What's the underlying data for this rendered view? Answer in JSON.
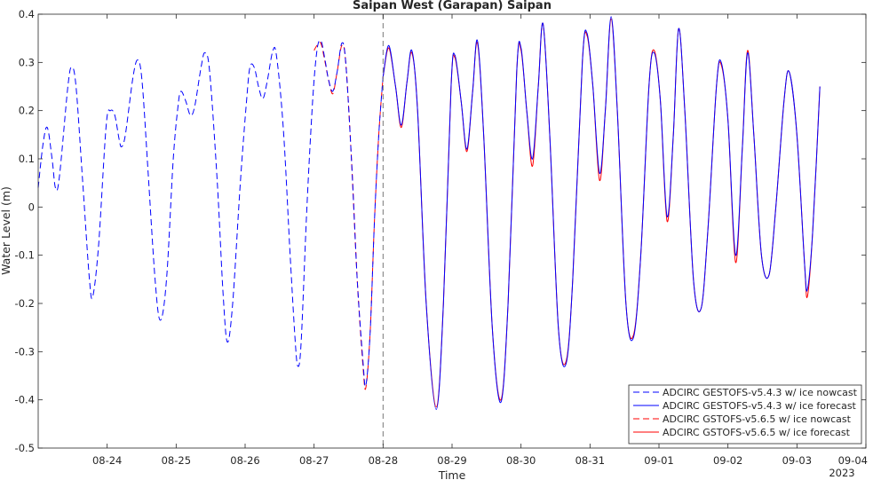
{
  "chart_data": {
    "type": "line",
    "title": "Saipan West (Garapan) Saipan",
    "xlabel": "Time",
    "ylabel": "Water Level (m)",
    "year_label": "2023",
    "ylim": [
      -0.5,
      0.4
    ],
    "yticks": [
      -0.5,
      -0.4,
      -0.3,
      -0.2,
      -0.1,
      0,
      0.1,
      0.2,
      0.3,
      0.4
    ],
    "ytick_labels": [
      "-0.5",
      "-0.4",
      "-0.3",
      "-0.2",
      "-0.1",
      "0",
      "0.1",
      "0.2",
      "0.3",
      "0.4"
    ],
    "xlim": [
      "2023-08-23 00:00",
      "2023-09-04 00:00"
    ],
    "xticks": [
      "2023-08-24",
      "2023-08-25",
      "2023-08-26",
      "2023-08-27",
      "2023-08-28",
      "2023-08-29",
      "2023-08-30",
      "2023-08-31",
      "2023-09-01",
      "2023-09-02",
      "2023-09-03",
      "2023-09-04"
    ],
    "xtick_labels": [
      "08-24",
      "08-25",
      "08-26",
      "08-27",
      "08-28",
      "08-29",
      "08-30",
      "08-31",
      "09-01",
      "09-02",
      "09-03",
      "09-04"
    ],
    "nowcast_forecast_divider": "2023-08-28 00:00",
    "grid": false,
    "legend_position": "bottom-right",
    "series": [
      {
        "name": "ADCIRC GESTOFS-v5.4.3 w/ ice nowcast",
        "color": "#0000ff",
        "style": "dashed",
        "points": [
          [
            "2023-08-23 00:00",
            0.04
          ],
          [
            "2023-08-23 01:40",
            0.13
          ],
          [
            "2023-08-23 03:10",
            0.165
          ],
          [
            "2023-08-23 04:50",
            0.1
          ],
          [
            "2023-08-23 06:00",
            0.04
          ],
          [
            "2023-08-23 07:20",
            0.06
          ],
          [
            "2023-08-23 10:20",
            0.25
          ],
          [
            "2023-08-23 11:40",
            0.29
          ],
          [
            "2023-08-23 13:10",
            0.25
          ],
          [
            "2023-08-23 15:30",
            0.05
          ],
          [
            "2023-08-23 17:50",
            -0.15
          ],
          [
            "2023-08-23 19:00",
            -0.185
          ],
          [
            "2023-08-23 21:00",
            -0.08
          ],
          [
            "2023-08-23 23:40",
            0.17
          ],
          [
            "2023-08-24 01:10",
            0.2
          ],
          [
            "2023-08-24 02:40",
            0.19
          ],
          [
            "2023-08-24 04:10",
            0.14
          ],
          [
            "2023-08-24 05:00",
            0.125
          ],
          [
            "2023-08-24 06:20",
            0.15
          ],
          [
            "2023-08-24 09:00",
            0.27
          ],
          [
            "2023-08-24 10:40",
            0.305
          ],
          [
            "2023-08-24 12:10",
            0.26
          ],
          [
            "2023-08-24 14:10",
            0.08
          ],
          [
            "2023-08-24 16:40",
            -0.15
          ],
          [
            "2023-08-24 18:30",
            -0.235
          ],
          [
            "2023-08-24 20:40",
            -0.15
          ],
          [
            "2023-08-24 23:00",
            0.1
          ],
          [
            "2023-08-25 00:40",
            0.21
          ],
          [
            "2023-08-25 01:40",
            0.24
          ],
          [
            "2023-08-25 03:20",
            0.22
          ],
          [
            "2023-08-25 05:00",
            0.19
          ],
          [
            "2023-08-25 06:30",
            0.21
          ],
          [
            "2023-08-25 08:40",
            0.29
          ],
          [
            "2023-08-25 10:00",
            0.32
          ],
          [
            "2023-08-25 11:40",
            0.28
          ],
          [
            "2023-08-25 14:20",
            0.05
          ],
          [
            "2023-08-25 16:20",
            -0.18
          ],
          [
            "2023-08-25 17:50",
            -0.28
          ],
          [
            "2023-08-25 19:40",
            -0.2
          ],
          [
            "2023-08-25 22:20",
            0.05
          ],
          [
            "2023-08-26 00:30",
            0.22
          ],
          [
            "2023-08-26 01:40",
            0.29
          ],
          [
            "2023-08-26 03:10",
            0.29
          ],
          [
            "2023-08-26 04:40",
            0.25
          ],
          [
            "2023-08-26 06:10",
            0.225
          ],
          [
            "2023-08-26 07:40",
            0.26
          ],
          [
            "2023-08-26 09:40",
            0.325
          ],
          [
            "2023-08-26 11:00",
            0.31
          ],
          [
            "2023-08-26 13:20",
            0.16
          ],
          [
            "2023-08-26 15:40",
            -0.1
          ],
          [
            "2023-08-26 17:20",
            -0.27
          ],
          [
            "2023-08-26 18:20",
            -0.33
          ],
          [
            "2023-08-26 19:30",
            -0.28
          ],
          [
            "2023-08-26 21:30",
            0.0
          ],
          [
            "2023-08-26 23:30",
            0.22
          ],
          [
            "2023-08-27 01:00",
            0.325
          ],
          [
            "2023-08-27 02:20",
            0.345
          ],
          [
            "2023-08-27 03:40",
            0.31
          ],
          [
            "2023-08-27 05:00",
            0.265
          ],
          [
            "2023-08-27 06:30",
            0.24
          ],
          [
            "2023-08-27 08:00",
            0.28
          ],
          [
            "2023-08-27 09:40",
            0.34
          ],
          [
            "2023-08-27 11:00",
            0.3
          ],
          [
            "2023-08-27 13:00",
            0.1
          ],
          [
            "2023-08-27 15:00",
            -0.15
          ],
          [
            "2023-08-27 17:00",
            -0.32
          ],
          [
            "2023-08-27 18:00",
            -0.37
          ],
          [
            "2023-08-27 19:30",
            -0.26
          ],
          [
            "2023-08-27 21:00",
            -0.03
          ],
          [
            "2023-08-27 22:30",
            0.15
          ],
          [
            "2023-08-27 24:00",
            0.27
          ]
        ]
      },
      {
        "name": "ADCIRC GESTOFS-v5.4.3 w/ ice forecast",
        "color": "#0000ff",
        "style": "solid",
        "points": [
          [
            "2023-08-28 00:00",
            0.27
          ],
          [
            "2023-08-28 02:00",
            0.335
          ],
          [
            "2023-08-28 04:20",
            0.25
          ],
          [
            "2023-08-28 06:20",
            0.17
          ],
          [
            "2023-08-28 08:20",
            0.26
          ],
          [
            "2023-08-28 10:00",
            0.325
          ],
          [
            "2023-08-28 12:00",
            0.2
          ],
          [
            "2023-08-28 15:00",
            -0.2
          ],
          [
            "2023-08-28 18:30",
            -0.42
          ],
          [
            "2023-08-28 21:00",
            -0.2
          ],
          [
            "2023-08-28 23:40",
            0.25
          ],
          [
            "2023-08-29 01:00",
            0.315
          ],
          [
            "2023-08-29 03:10",
            0.22
          ],
          [
            "2023-08-29 05:10",
            0.12
          ],
          [
            "2023-08-29 07:10",
            0.24
          ],
          [
            "2023-08-29 08:50",
            0.345
          ],
          [
            "2023-08-29 11:00",
            0.15
          ],
          [
            "2023-08-29 14:00",
            -0.25
          ],
          [
            "2023-08-29 17:00",
            -0.405
          ],
          [
            "2023-08-29 19:30",
            -0.2
          ],
          [
            "2023-08-29 22:30",
            0.28
          ],
          [
            "2023-08-30 00:00",
            0.33
          ],
          [
            "2023-08-30 02:00",
            0.2
          ],
          [
            "2023-08-30 04:00",
            0.1
          ],
          [
            "2023-08-30 06:00",
            0.25
          ],
          [
            "2023-08-30 07:40",
            0.38
          ],
          [
            "2023-08-30 10:00",
            0.15
          ],
          [
            "2023-08-30 13:00",
            -0.25
          ],
          [
            "2023-08-30 15:40",
            -0.325
          ],
          [
            "2023-08-30 18:00",
            -0.15
          ],
          [
            "2023-08-30 21:20",
            0.3
          ],
          [
            "2023-08-30 23:00",
            0.36
          ],
          [
            "2023-08-31 01:00",
            0.25
          ],
          [
            "2023-08-31 03:20",
            0.07
          ],
          [
            "2023-08-31 05:20",
            0.2
          ],
          [
            "2023-08-31 07:20",
            0.395
          ],
          [
            "2023-08-31 09:30",
            0.2
          ],
          [
            "2023-08-31 12:30",
            -0.2
          ],
          [
            "2023-08-31 15:10",
            -0.27
          ],
          [
            "2023-08-31 17:40",
            -0.1
          ],
          [
            "2023-08-31 20:30",
            0.25
          ],
          [
            "2023-08-31 22:20",
            0.32
          ],
          [
            "2023-09-01 00:30",
            0.22
          ],
          [
            "2023-09-01 02:50",
            -0.02
          ],
          [
            "2023-09-01 05:00",
            0.15
          ],
          [
            "2023-09-01 06:50",
            0.37
          ],
          [
            "2023-09-01 09:00",
            0.2
          ],
          [
            "2023-09-01 12:00",
            -0.15
          ],
          [
            "2023-09-01 14:40",
            -0.21
          ],
          [
            "2023-09-01 17:00",
            -0.05
          ],
          [
            "2023-09-01 20:00",
            0.25
          ],
          [
            "2023-09-01 21:40",
            0.3
          ],
          [
            "2023-09-02 00:00",
            0.18
          ],
          [
            "2023-09-02 02:40",
            -0.1
          ],
          [
            "2023-09-02 05:00",
            0.12
          ],
          [
            "2023-09-02 06:50",
            0.32
          ],
          [
            "2023-09-02 09:00",
            0.15
          ],
          [
            "2023-09-02 11:40",
            -0.1
          ],
          [
            "2023-09-02 14:20",
            -0.14
          ],
          [
            "2023-09-02 16:40",
            0.0
          ],
          [
            "2023-09-02 19:30",
            0.22
          ],
          [
            "2023-09-02 21:20",
            0.28
          ],
          [
            "2023-09-03 00:00",
            0.15
          ],
          [
            "2023-09-03 02:40",
            -0.12
          ],
          [
            "2023-09-03 03:40",
            -0.17
          ],
          [
            "2023-09-03 05:30",
            -0.05
          ],
          [
            "2023-09-03 08:00",
            0.25
          ]
        ]
      },
      {
        "name": "ADCIRC GSTOFS-v5.6.5 w/ ice nowcast",
        "color": "#ff0000",
        "style": "dashed",
        "points": [
          [
            "2023-08-27 00:00",
            0.325
          ],
          [
            "2023-08-27 01:00",
            0.335
          ],
          [
            "2023-08-27 02:20",
            0.34
          ],
          [
            "2023-08-27 03:40",
            0.305
          ],
          [
            "2023-08-27 05:00",
            0.265
          ],
          [
            "2023-08-27 06:30",
            0.235
          ],
          [
            "2023-08-27 08:00",
            0.28
          ],
          [
            "2023-08-27 09:40",
            0.335
          ],
          [
            "2023-08-27 11:00",
            0.3
          ],
          [
            "2023-08-27 13:00",
            0.1
          ],
          [
            "2023-08-27 15:00",
            -0.15
          ],
          [
            "2023-08-27 17:00",
            -0.33
          ],
          [
            "2023-08-27 18:00",
            -0.375
          ],
          [
            "2023-08-27 19:30",
            -0.26
          ],
          [
            "2023-08-27 21:00",
            -0.03
          ],
          [
            "2023-08-27 22:30",
            0.15
          ],
          [
            "2023-08-27 24:00",
            0.27
          ]
        ]
      },
      {
        "name": "ADCIRC GSTOFS-v5.6.5 w/ ice forecast",
        "color": "#ff0000",
        "style": "solid",
        "points": [
          [
            "2023-08-28 00:00",
            0.27
          ],
          [
            "2023-08-28 02:00",
            0.33
          ],
          [
            "2023-08-28 04:20",
            0.25
          ],
          [
            "2023-08-28 06:20",
            0.165
          ],
          [
            "2023-08-28 08:20",
            0.26
          ],
          [
            "2023-08-28 10:00",
            0.32
          ],
          [
            "2023-08-28 12:00",
            0.2
          ],
          [
            "2023-08-28 15:00",
            -0.2
          ],
          [
            "2023-08-28 18:30",
            -0.415
          ],
          [
            "2023-08-28 21:00",
            -0.2
          ],
          [
            "2023-08-28 23:40",
            0.25
          ],
          [
            "2023-08-29 01:00",
            0.31
          ],
          [
            "2023-08-29 03:10",
            0.22
          ],
          [
            "2023-08-29 05:10",
            0.115
          ],
          [
            "2023-08-29 07:10",
            0.24
          ],
          [
            "2023-08-29 08:50",
            0.34
          ],
          [
            "2023-08-29 11:00",
            0.15
          ],
          [
            "2023-08-29 14:00",
            -0.25
          ],
          [
            "2023-08-29 17:00",
            -0.4
          ],
          [
            "2023-08-29 19:30",
            -0.2
          ],
          [
            "2023-08-29 22:30",
            0.28
          ],
          [
            "2023-08-30 00:00",
            0.325
          ],
          [
            "2023-08-30 02:00",
            0.2
          ],
          [
            "2023-08-30 04:00",
            0.085
          ],
          [
            "2023-08-30 06:00",
            0.25
          ],
          [
            "2023-08-30 07:40",
            0.38
          ],
          [
            "2023-08-30 10:00",
            0.15
          ],
          [
            "2023-08-30 13:00",
            -0.25
          ],
          [
            "2023-08-30 15:40",
            -0.32
          ],
          [
            "2023-08-30 18:00",
            -0.15
          ],
          [
            "2023-08-30 21:20",
            0.3
          ],
          [
            "2023-08-30 23:00",
            0.355
          ],
          [
            "2023-08-31 01:00",
            0.25
          ],
          [
            "2023-08-31 03:20",
            0.055
          ],
          [
            "2023-08-31 05:20",
            0.2
          ],
          [
            "2023-08-31 07:20",
            0.39
          ],
          [
            "2023-08-31 09:30",
            0.2
          ],
          [
            "2023-08-31 12:30",
            -0.2
          ],
          [
            "2023-08-31 15:10",
            -0.265
          ],
          [
            "2023-08-31 17:40",
            -0.1
          ],
          [
            "2023-08-31 20:30",
            0.25
          ],
          [
            "2023-08-31 22:20",
            0.325
          ],
          [
            "2023-09-01 00:30",
            0.22
          ],
          [
            "2023-09-01 02:50",
            -0.03
          ],
          [
            "2023-09-01 05:00",
            0.15
          ],
          [
            "2023-09-01 06:50",
            0.37
          ],
          [
            "2023-09-01 09:00",
            0.2
          ],
          [
            "2023-09-01 12:00",
            -0.15
          ],
          [
            "2023-09-01 14:40",
            -0.21
          ],
          [
            "2023-09-01 17:00",
            -0.05
          ],
          [
            "2023-09-01 20:00",
            0.25
          ],
          [
            "2023-09-01 21:40",
            0.295
          ],
          [
            "2023-09-02 00:00",
            0.18
          ],
          [
            "2023-09-02 02:40",
            -0.115
          ],
          [
            "2023-09-02 05:00",
            0.12
          ],
          [
            "2023-09-02 06:50",
            0.325
          ],
          [
            "2023-09-02 09:00",
            0.15
          ],
          [
            "2023-09-02 11:40",
            -0.1
          ],
          [
            "2023-09-02 14:20",
            -0.14
          ],
          [
            "2023-09-02 16:40",
            0.0
          ],
          [
            "2023-09-02 19:30",
            0.22
          ],
          [
            "2023-09-02 21:20",
            0.28
          ],
          [
            "2023-09-03 00:00",
            0.15
          ],
          [
            "2023-09-03 02:40",
            -0.12
          ],
          [
            "2023-09-03 03:40",
            -0.185
          ],
          [
            "2023-09-03 05:30",
            -0.05
          ],
          [
            "2023-09-03 08:00",
            0.25
          ]
        ]
      }
    ]
  }
}
